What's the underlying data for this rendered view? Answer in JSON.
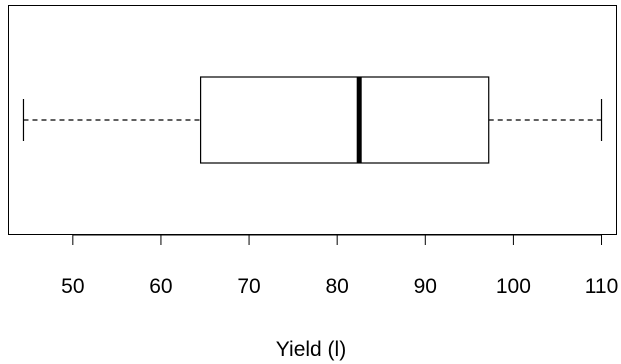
{
  "chart_data": {
    "type": "boxplot",
    "orientation": "horizontal",
    "title": "",
    "xlabel": "Yield (l)",
    "ylabel": "",
    "xlim": [
      42.7,
      111.7
    ],
    "x_ticks": [
      50,
      60,
      70,
      80,
      90,
      100,
      110
    ],
    "grid": false,
    "box": {
      "min": 44.4,
      "q1": 64.5,
      "median": 82.5,
      "q3": 97.2,
      "max": 110.0
    },
    "colors": {
      "box_fill": "#ffffff",
      "stroke": "#000000"
    }
  }
}
